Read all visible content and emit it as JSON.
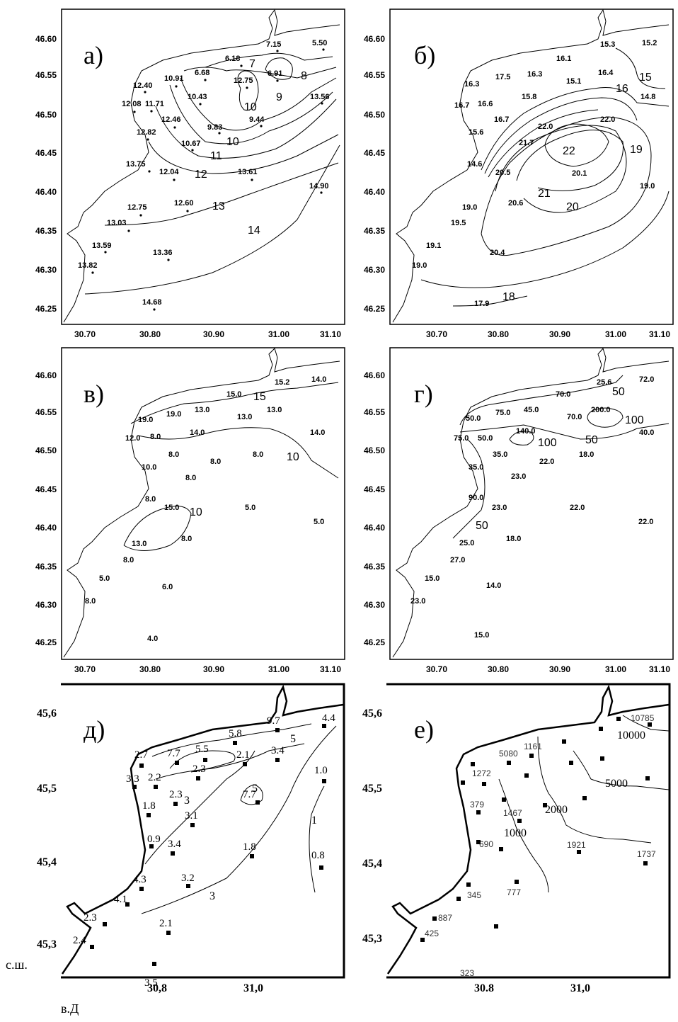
{
  "panels": [
    {
      "label": "а)",
      "yticks": [
        "46.60",
        "46.55",
        "46.50",
        "46.45",
        "46.40",
        "46.35",
        "46.30",
        "46.25"
      ],
      "xticks": [
        "30.70",
        "30.80",
        "30.90",
        "31.00",
        "31.10"
      ],
      "stations": [
        "7.15",
        "5.50",
        "6.18",
        "6.68",
        "12.75",
        "6.91",
        "12.40",
        "10.91",
        "10.43",
        "13.56",
        "12.08",
        "11.71",
        "12.46",
        "9.83",
        "9.44",
        "12.82",
        "10.67",
        "13.75",
        "12.04",
        "13.61",
        "14.90",
        "12.75",
        "12.60",
        "13.03",
        "13.59",
        "13.36",
        "13.82",
        "14.68"
      ],
      "isolines": [
        "7",
        "8",
        "9",
        "10",
        "10",
        "11",
        "12",
        "13",
        "14"
      ]
    },
    {
      "label": "б)",
      "yticks": [
        "46.60",
        "46.55",
        "46.50",
        "46.45",
        "46.40",
        "46.35",
        "46.30",
        "46.25"
      ],
      "xticks": [
        "30.70",
        "30.80",
        "30.90",
        "31.00",
        "31.10"
      ],
      "stations": [
        "15.3",
        "15.2",
        "16.1",
        "16.3",
        "17.5",
        "16.3",
        "16.4",
        "15.1",
        "15.8",
        "14.8",
        "16.7",
        "16.6",
        "16.7",
        "22.0",
        "22.0",
        "15.6",
        "21.7",
        "14.6",
        "20.5",
        "20.1",
        "19.0",
        "20.6",
        "19.0",
        "19.5",
        "19.1",
        "20.4",
        "19.0",
        "17.9"
      ],
      "isolines": [
        "15",
        "16",
        "22",
        "19",
        "21",
        "20",
        "18"
      ]
    },
    {
      "label": "в)",
      "yticks": [
        "46.60",
        "46.55",
        "46.50",
        "46.45",
        "46.40",
        "46.35",
        "46.30",
        "46.25"
      ],
      "xticks": [
        "30.70",
        "30.80",
        "30.90",
        "31.00",
        "31.10"
      ],
      "stations": [
        "15.2",
        "14.0",
        "15.0",
        "19.0",
        "19.0",
        "13.0",
        "13.0",
        "13.0",
        "14.0",
        "14.0",
        "12.0",
        "8.0",
        "8.0",
        "8.0",
        "8.0",
        "10.0",
        "8.0",
        "8.0",
        "15.0",
        "5.0",
        "5.0",
        "13.0",
        "8.0",
        "8.0",
        "5.0",
        "6.0",
        "8.0",
        "4.0"
      ],
      "isolines": [
        "15",
        "10",
        "10"
      ]
    },
    {
      "label": "г)",
      "yticks": [
        "46.60",
        "46.55",
        "46.50",
        "46.45",
        "46.40",
        "46.35",
        "46.30",
        "46.25"
      ],
      "xticks": [
        "30.70",
        "30.80",
        "30.90",
        "31.00",
        "31.10"
      ],
      "stations": [
        "25.6",
        "72.0",
        "70.0",
        "50.0",
        "75.0",
        "45.0",
        "70.0",
        "200.0",
        "140.0",
        "40.0",
        "75.0",
        "50.0",
        "35.0",
        "22.0",
        "18.0",
        "35.0",
        "23.0",
        "90.0",
        "23.0",
        "22.0",
        "22.0",
        "25.0",
        "18.0",
        "27.0",
        "15.0",
        "14.0",
        "23.0",
        "15.0"
      ],
      "isolines": [
        "50",
        "100",
        "100",
        "50",
        "50"
      ]
    },
    {
      "label": "д)",
      "yticks": [
        "45,6",
        "45,5",
        "45,4",
        "45,3"
      ],
      "xticks": [
        "30,8",
        "31,0"
      ],
      "stations": [
        "9.7",
        "4.4",
        "5.8",
        "2.7",
        "7.7",
        "5.5",
        "3.4",
        "2.1",
        "2.3",
        "2.2",
        "3.3",
        "2.3",
        "7.7",
        "1.0",
        "1.8",
        "3.1",
        "0.9",
        "3.4",
        "1.8",
        "0.8",
        "4.3",
        "3.2",
        "4.1",
        "2.3",
        "2.1",
        "2.4",
        "3.5"
      ],
      "isolines": [
        "5",
        "3",
        "5",
        "1",
        "3"
      ]
    },
    {
      "label": "е)",
      "yticks": [
        "45,6",
        "45,5",
        "45,4",
        "45,3"
      ],
      "xticks": [
        "30.8",
        "31,0"
      ],
      "stations": [
        "10785",
        "5080",
        "1161",
        "1272",
        "379",
        "1467",
        "690",
        "1921",
        "1737",
        "345",
        "777",
        "887",
        "425",
        "323"
      ],
      "isolines": [
        "10000",
        "5000",
        "2000",
        "1000"
      ]
    }
  ],
  "axis_notes": {
    "lat": "с.ш.",
    "lon": "в.Д"
  }
}
